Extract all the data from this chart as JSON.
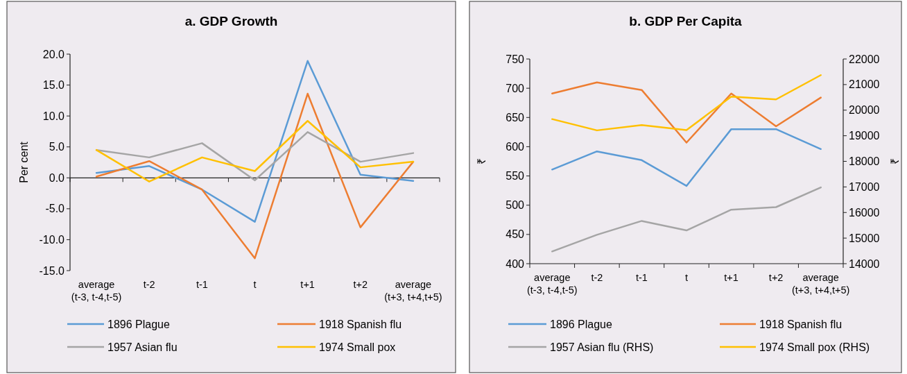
{
  "chart_data": [
    {
      "type": "line",
      "title": "a. GDP Growth",
      "ylabel": "Per cent",
      "categories": [
        "average\n(t-3, t-4,t-5)",
        "t-2",
        "t-1",
        "t",
        "t+1",
        "t+2",
        "average\n(t+3, t+4,t+5)"
      ],
      "ylim": [
        -15,
        20
      ],
      "yticks": [
        {
          "value": -15,
          "label": "-15.0"
        },
        {
          "value": -10,
          "label": "-10.0"
        },
        {
          "value": -5,
          "label": "-5.0"
        },
        {
          "value": 0,
          "label": "0.0"
        },
        {
          "value": 5,
          "label": "5.0"
        },
        {
          "value": 10,
          "label": "10.0"
        },
        {
          "value": 15,
          "label": "15.0"
        },
        {
          "value": 20,
          "label": "20.0"
        }
      ],
      "legend": "bottom",
      "series": [
        {
          "name": "1896 Plague",
          "color": "#5b9bd5",
          "values": [
            0.8,
            1.9,
            -1.9,
            -7.1,
            18.9,
            0.5,
            -0.5
          ]
        },
        {
          "name": "1918 Spanish flu",
          "color": "#ed7d31",
          "values": [
            0.2,
            2.7,
            -1.9,
            -13.0,
            13.6,
            -8.0,
            2.6
          ]
        },
        {
          "name": "1957 Asian flu",
          "color": "#a5a5a5",
          "values": [
            4.5,
            3.3,
            5.6,
            -0.4,
            7.4,
            2.6,
            4.0
          ]
        },
        {
          "name": "1974 Small pox",
          "color": "#ffc000",
          "values": [
            4.5,
            -0.6,
            3.3,
            1.1,
            9.2,
            1.7,
            2.6
          ]
        }
      ]
    },
    {
      "type": "line",
      "title": "b. GDP Per Capita",
      "ylabel": "₹",
      "y2label": "₹",
      "categories": [
        "average\n(t-3, t-4,t-5)",
        "t-2",
        "t-1",
        "t",
        "t+1",
        "t+2",
        "average\n(t+3, t+4,t+5)"
      ],
      "ylim": [
        400,
        750
      ],
      "yticks": [
        400,
        450,
        500,
        550,
        600,
        650,
        700,
        750
      ],
      "y2lim": [
        14000,
        22000
      ],
      "y2ticks": [
        14000,
        15000,
        16000,
        17000,
        18000,
        19000,
        20000,
        21000,
        22000
      ],
      "legend": "bottom",
      "series": [
        {
          "name": "1896 Plague",
          "color": "#5b9bd5",
          "values": [
            561,
            592,
            577,
            533,
            630,
            630,
            596
          ]
        },
        {
          "name": "1918 Spanish flu",
          "color": "#ed7d31",
          "values": [
            691,
            710,
            697,
            607,
            691,
            635,
            684
          ]
        },
        {
          "name": "1957 Asian flu (RHS)",
          "color": "#a5a5a5",
          "axis": "y2",
          "values": [
            14480,
            15130,
            15670,
            15300,
            16110,
            16210,
            16980
          ]
        },
        {
          "name": "1974 Small pox (RHS)",
          "color": "#ffc000",
          "axis": "y2",
          "values": [
            19650,
            19210,
            19420,
            19220,
            20530,
            20420,
            21370
          ]
        }
      ]
    }
  ]
}
